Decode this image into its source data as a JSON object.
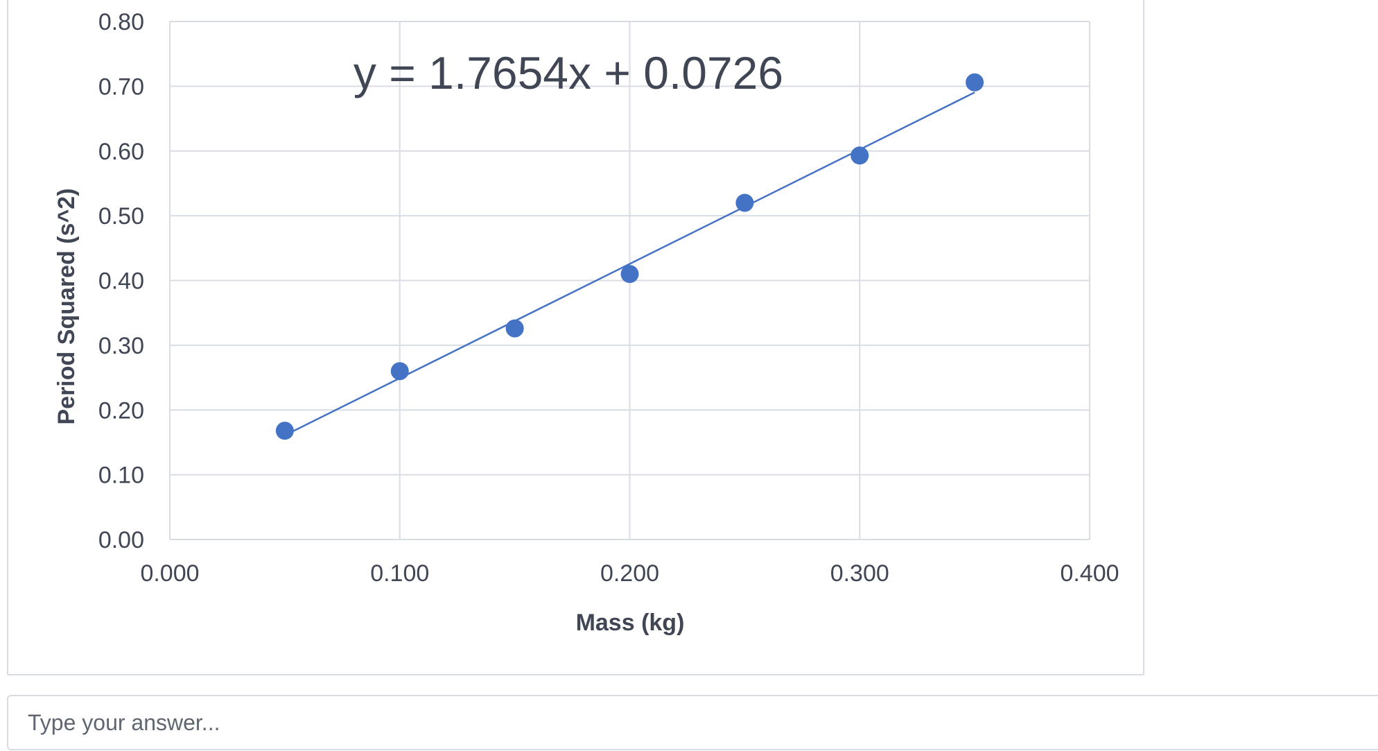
{
  "chart_data": {
    "type": "scatter",
    "x": [
      0.05,
      0.1,
      0.15,
      0.2,
      0.25,
      0.3,
      0.35
    ],
    "y": [
      0.168,
      0.26,
      0.326,
      0.41,
      0.52,
      0.593,
      0.706
    ],
    "xlabel": "Mass (kg)",
    "ylabel": "Period Squared (s^2)",
    "xlim": [
      0,
      0.4
    ],
    "ylim": [
      0,
      0.8
    ],
    "x_ticks": [
      "0.000",
      "0.100",
      "0.200",
      "0.300",
      "0.400"
    ],
    "y_ticks": [
      "0.00",
      "0.10",
      "0.20",
      "0.30",
      "0.40",
      "0.50",
      "0.60",
      "0.70",
      "0.80"
    ],
    "trendline": {
      "slope": 1.7654,
      "intercept": 0.0726,
      "x_range": [
        0.05,
        0.35
      ],
      "equation_label": "y = 1.7654x + 0.0726"
    },
    "grid": true,
    "legend": "none",
    "marker_color": "#4472c4",
    "line_color": "#4472c4"
  },
  "answer": {
    "placeholder": "Type your answer..."
  }
}
